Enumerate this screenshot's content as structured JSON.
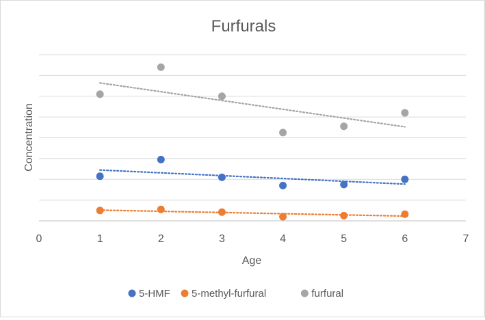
{
  "chart_data": {
    "type": "scatter",
    "title": "Furfurals",
    "xlabel": "Age",
    "ylabel": "Concentration",
    "xlim": [
      0,
      7
    ],
    "x_ticks": [
      "0",
      "1",
      "2",
      "3",
      "4",
      "5",
      "6",
      "7"
    ],
    "ylim": [
      0,
      8
    ],
    "y_gridlines": 8,
    "y_tick_labels_shown": false,
    "grid": true,
    "legend_position": "bottom",
    "trendlines": "linear, dotted",
    "series": [
      {
        "name": "5-HMF",
        "color": "#4472C4",
        "x": [
          1,
          2,
          3,
          4,
          5,
          6
        ],
        "y": [
          2.15,
          2.95,
          2.1,
          1.7,
          1.75,
          2.0
        ]
      },
      {
        "name": "5-methyl-furfural",
        "color": "#ED7D31",
        "x": [
          1,
          2,
          3,
          4,
          5,
          6
        ],
        "y": [
          0.5,
          0.55,
          0.42,
          0.2,
          0.25,
          0.32
        ]
      },
      {
        "name": "furfural",
        "color": "#A5A5A5",
        "x": [
          1,
          2,
          3,
          4,
          5,
          6
        ],
        "y": [
          6.1,
          7.4,
          6.0,
          4.25,
          4.55,
          5.2
        ]
      }
    ]
  }
}
